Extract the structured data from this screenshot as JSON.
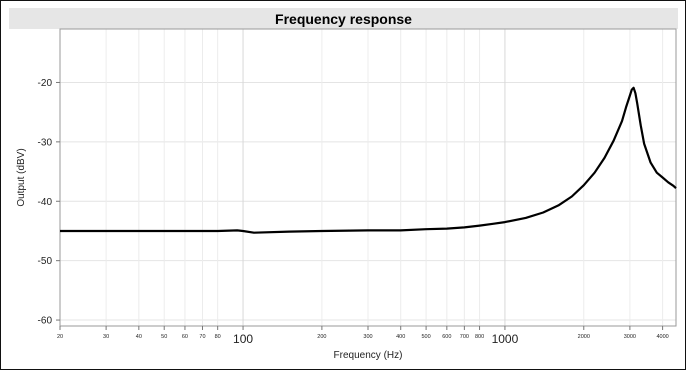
{
  "chart_data": {
    "type": "line",
    "title": "Frequency response",
    "xlabel": "Frequency (Hz)",
    "ylabel": "Output (dBV)",
    "xscale": "log",
    "xlim": [
      20,
      4500
    ],
    "ylim": [
      -61,
      -11
    ],
    "grid": true,
    "x_ticks": [
      20,
      30,
      40,
      50,
      60,
      70,
      80,
      100,
      200,
      300,
      400,
      500,
      600,
      700,
      800,
      1000,
      2000,
      3000,
      4000
    ],
    "x_tick_labels": [
      "20",
      "30",
      "40",
      "50",
      "60",
      "70",
      "80",
      "100",
      "200",
      "300",
      "400",
      "500",
      "600",
      "700",
      "800",
      "1000",
      "2000",
      "3000",
      "4000"
    ],
    "y_ticks": [
      -20,
      -30,
      -40,
      -50,
      -60
    ],
    "y_tick_labels": [
      "-20",
      "-30",
      "-40",
      "-50",
      "-60"
    ],
    "series": [
      {
        "color": "#000000",
        "x": [
          20,
          30,
          50,
          80,
          95,
          100,
          110,
          150,
          200,
          300,
          400,
          500,
          600,
          700,
          800,
          900,
          1000,
          1200,
          1400,
          1600,
          1800,
          2000,
          2200,
          2400,
          2600,
          2800,
          2900,
          3000,
          3050,
          3100,
          3150,
          3200,
          3300,
          3400,
          3600,
          3800,
          4000,
          4200,
          4400,
          4500
        ],
        "y": [
          -45,
          -45,
          -45,
          -45,
          -44.9,
          -45,
          -45.3,
          -45.1,
          -45,
          -44.9,
          -44.9,
          -44.7,
          -44.6,
          -44.4,
          -44.1,
          -43.8,
          -43.5,
          -42.8,
          -41.9,
          -40.7,
          -39.2,
          -37.3,
          -35.2,
          -32.7,
          -29.8,
          -26.5,
          -24.2,
          -22.2,
          -21.2,
          -20.9,
          -21.8,
          -23.5,
          -27.2,
          -30.3,
          -33.5,
          -35.2,
          -36,
          -36.8,
          -37.4,
          -37.8
        ]
      }
    ]
  }
}
